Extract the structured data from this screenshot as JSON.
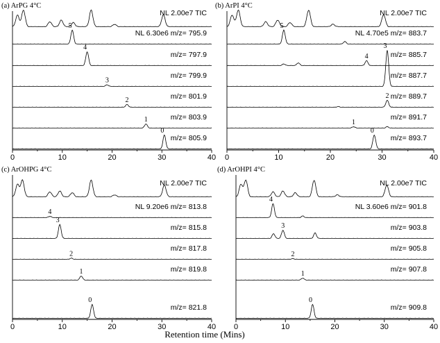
{
  "figure": {
    "xlabel": "Retention time (Mins)"
  },
  "chart_data": [
    {
      "type": "line",
      "title": "(a) ArPG 4°C",
      "xlim": [
        0,
        40
      ],
      "xticks": [
        "0",
        "10",
        "20",
        "30",
        "40"
      ],
      "series": [
        {
          "name": "TIC",
          "label": "NL 2.00e7 TIC",
          "peaks": [
            [
              1.0,
              0.7
            ],
            [
              2.2,
              1.0
            ],
            [
              7.5,
              0.3
            ],
            [
              9.8,
              0.4
            ],
            [
              12.2,
              0.25
            ],
            [
              15.8,
              1.0
            ],
            [
              20.5,
              0.15
            ],
            [
              30.3,
              0.72
            ]
          ]
        },
        {
          "name": "m/z= 795.9",
          "label": "NL 6.30e6 m/z= 795.9",
          "peak_label": "5",
          "peaks": [
            [
              12.0,
              1.0
            ]
          ]
        },
        {
          "name": "m/z= 797.9",
          "label": "m/z= 797.9",
          "peak_label": "4",
          "peaks": [
            [
              15.0,
              1.0
            ]
          ]
        },
        {
          "name": "m/z= 799.9",
          "label": "m/z= 799.9",
          "peak_label": "3",
          "peaks": [
            [
              19.0,
              0.12
            ]
          ]
        },
        {
          "name": "m/z= 801.9",
          "label": "m/z= 801.9",
          "peak_label": "2",
          "peaks": [
            [
              23.0,
              0.2
            ]
          ]
        },
        {
          "name": "m/z= 803.9",
          "label": "m/z= 803.9",
          "peak_label": "1",
          "peaks": [
            [
              26.8,
              0.3
            ]
          ]
        },
        {
          "name": "m/z= 805.9",
          "label": "m/z= 805.9",
          "peak_label": "0",
          "peaks": [
            [
              30.5,
              1.0
            ]
          ]
        }
      ]
    },
    {
      "type": "line",
      "title": "(b) ArPI 4°C",
      "xlim": [
        0,
        40
      ],
      "xticks": [
        "0",
        "10",
        "20",
        "30",
        "40"
      ],
      "series": [
        {
          "name": "TIC",
          "label": "NL 2.00e7 TIC",
          "peaks": [
            [
              1.0,
              0.7
            ],
            [
              2.2,
              1.0
            ],
            [
              7.5,
              0.3
            ],
            [
              9.8,
              0.4
            ],
            [
              12.2,
              0.25
            ],
            [
              15.8,
              1.0
            ],
            [
              20.5,
              0.15
            ],
            [
              30.3,
              0.72
            ]
          ]
        },
        {
          "name": "m/z= 883.7",
          "label": "NL 4.70e5 m/z= 883.7",
          "peak_label": "5",
          "peaks": [
            [
              11.0,
              1.0
            ],
            [
              22.8,
              0.18
            ]
          ]
        },
        {
          "name": "m/z= 885.7",
          "label": "m/z= 885.7",
          "peak_label": "4",
          "peaks": [
            [
              11.0,
              0.12
            ],
            [
              13.8,
              0.2
            ],
            [
              27.0,
              0.35
            ]
          ]
        },
        {
          "name": "m/z= 887.7",
          "label": "m/z= 887.7",
          "peak_label": "3",
          "peaks": [
            [
              31.0,
              2.6
            ]
          ]
        },
        {
          "name": "m/z= 889.7",
          "label": "m/z= 889.7",
          "peak_label": "2",
          "peaks": [
            [
              21.5,
              0.05
            ],
            [
              31.0,
              0.5
            ]
          ]
        },
        {
          "name": "m/z= 891.7",
          "label": "m/z= 891.7",
          "peak_label": "1",
          "peaks": [
            [
              24.5,
              0.1
            ],
            [
              31.0,
              0.1
            ]
          ]
        },
        {
          "name": "m/z= 893.7",
          "label": "m/z= 893.7",
          "peak_label": "0",
          "peaks": [
            [
              28.5,
              1.0
            ]
          ]
        }
      ]
    },
    {
      "type": "line",
      "title": "(c) ArOHPG 4°C",
      "xlim": [
        0,
        40
      ],
      "xticks": [
        "0",
        "10",
        "20",
        "30",
        "40"
      ],
      "series": [
        {
          "name": "TIC",
          "label": "NL 2.00e7 TIC",
          "peaks": [
            [
              1.0,
              0.75
            ],
            [
              2.0,
              1.0
            ],
            [
              7.5,
              0.3
            ],
            [
              9.5,
              0.35
            ],
            [
              12.0,
              0.25
            ],
            [
              15.8,
              1.0
            ],
            [
              20.5,
              0.12
            ],
            [
              30.5,
              0.7
            ]
          ]
        },
        {
          "name": "m/z= 813.8",
          "label": "NL 9.20e6 m/z= 813.8",
          "peak_label": "4",
          "peaks": [
            [
              7.5,
              0.1
            ]
          ]
        },
        {
          "name": "m/z= 815.8",
          "label": "m/z= 815.8",
          "peak_label": "3",
          "peaks": [
            [
              9.5,
              1.0
            ]
          ]
        },
        {
          "name": "m/z= 817.8",
          "label": "m/z= 817.8",
          "peak_label": "2",
          "peaks": [
            [
              11.8,
              0.08
            ]
          ]
        },
        {
          "name": "m/z= 819.8",
          "label": "m/z= 819.8",
          "peak_label": "1",
          "peaks": [
            [
              13.8,
              0.3
            ]
          ]
        },
        {
          "name": "m/z= 821.8",
          "label": "m/z= 821.8",
          "peak_label": "0",
          "peaks": [
            [
              16.0,
              1.0
            ]
          ]
        }
      ]
    },
    {
      "type": "line",
      "title": "(d) ArOHPI 4°C",
      "xlim": [
        0,
        40
      ],
      "xticks": [
        "0",
        "10",
        "20",
        "30",
        "40"
      ],
      "series": [
        {
          "name": "TIC",
          "label": "NL 2.00e7 TIC",
          "peaks": [
            [
              1.0,
              0.75
            ],
            [
              2.0,
              1.0
            ],
            [
              7.5,
              0.3
            ],
            [
              9.5,
              0.35
            ],
            [
              12.0,
              0.25
            ],
            [
              15.8,
              1.0
            ],
            [
              20.5,
              0.12
            ],
            [
              30.5,
              0.7
            ]
          ]
        },
        {
          "name": "m/z= 901.8",
          "label": "NL 3.60e6 m/z= 901.8",
          "peak_label": "4",
          "peaks": [
            [
              7.5,
              1.0
            ],
            [
              13.5,
              0.12
            ]
          ]
        },
        {
          "name": "m/z= 903.8",
          "label": "m/z= 903.8",
          "peak_label": "3",
          "peaks": [
            [
              7.6,
              0.35
            ],
            [
              9.5,
              0.6
            ],
            [
              16.0,
              0.4
            ]
          ]
        },
        {
          "name": "m/z= 905.8",
          "label": "m/z= 905.8",
          "peak_label": "2",
          "peaks": [
            [
              11.5,
              0.05
            ]
          ]
        },
        {
          "name": "m/z= 907.8",
          "label": "m/z= 907.8",
          "peak_label": "1",
          "peaks": [
            [
              13.5,
              0.15
            ]
          ]
        },
        {
          "name": "m/z= 909.8",
          "label": "m/z= 909.8",
          "peak_label": "0",
          "peaks": [
            [
              15.5,
              1.0
            ]
          ]
        }
      ]
    }
  ]
}
